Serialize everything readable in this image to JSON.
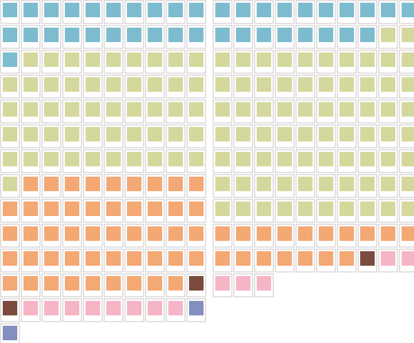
{
  "chart_data": [
    {
      "type": "waffle",
      "tick_labels": false,
      "values": [
        21,
        50,
        48,
        2,
        8,
        2
      ],
      "colors": [
        "#7dbccf",
        "#d5d89d",
        "#f4a874",
        "#7b4b3e",
        "#f5b5c5",
        "#8390be"
      ]
    },
    {
      "type": "waffle",
      "tick_labels": false,
      "values": [
        18,
        72,
        17,
        1,
        5
      ],
      "colors": [
        "#7dbccf",
        "#d5d89d",
        "#f4a874",
        "#7b4b3e",
        "#f5b5c5"
      ]
    }
  ]
}
